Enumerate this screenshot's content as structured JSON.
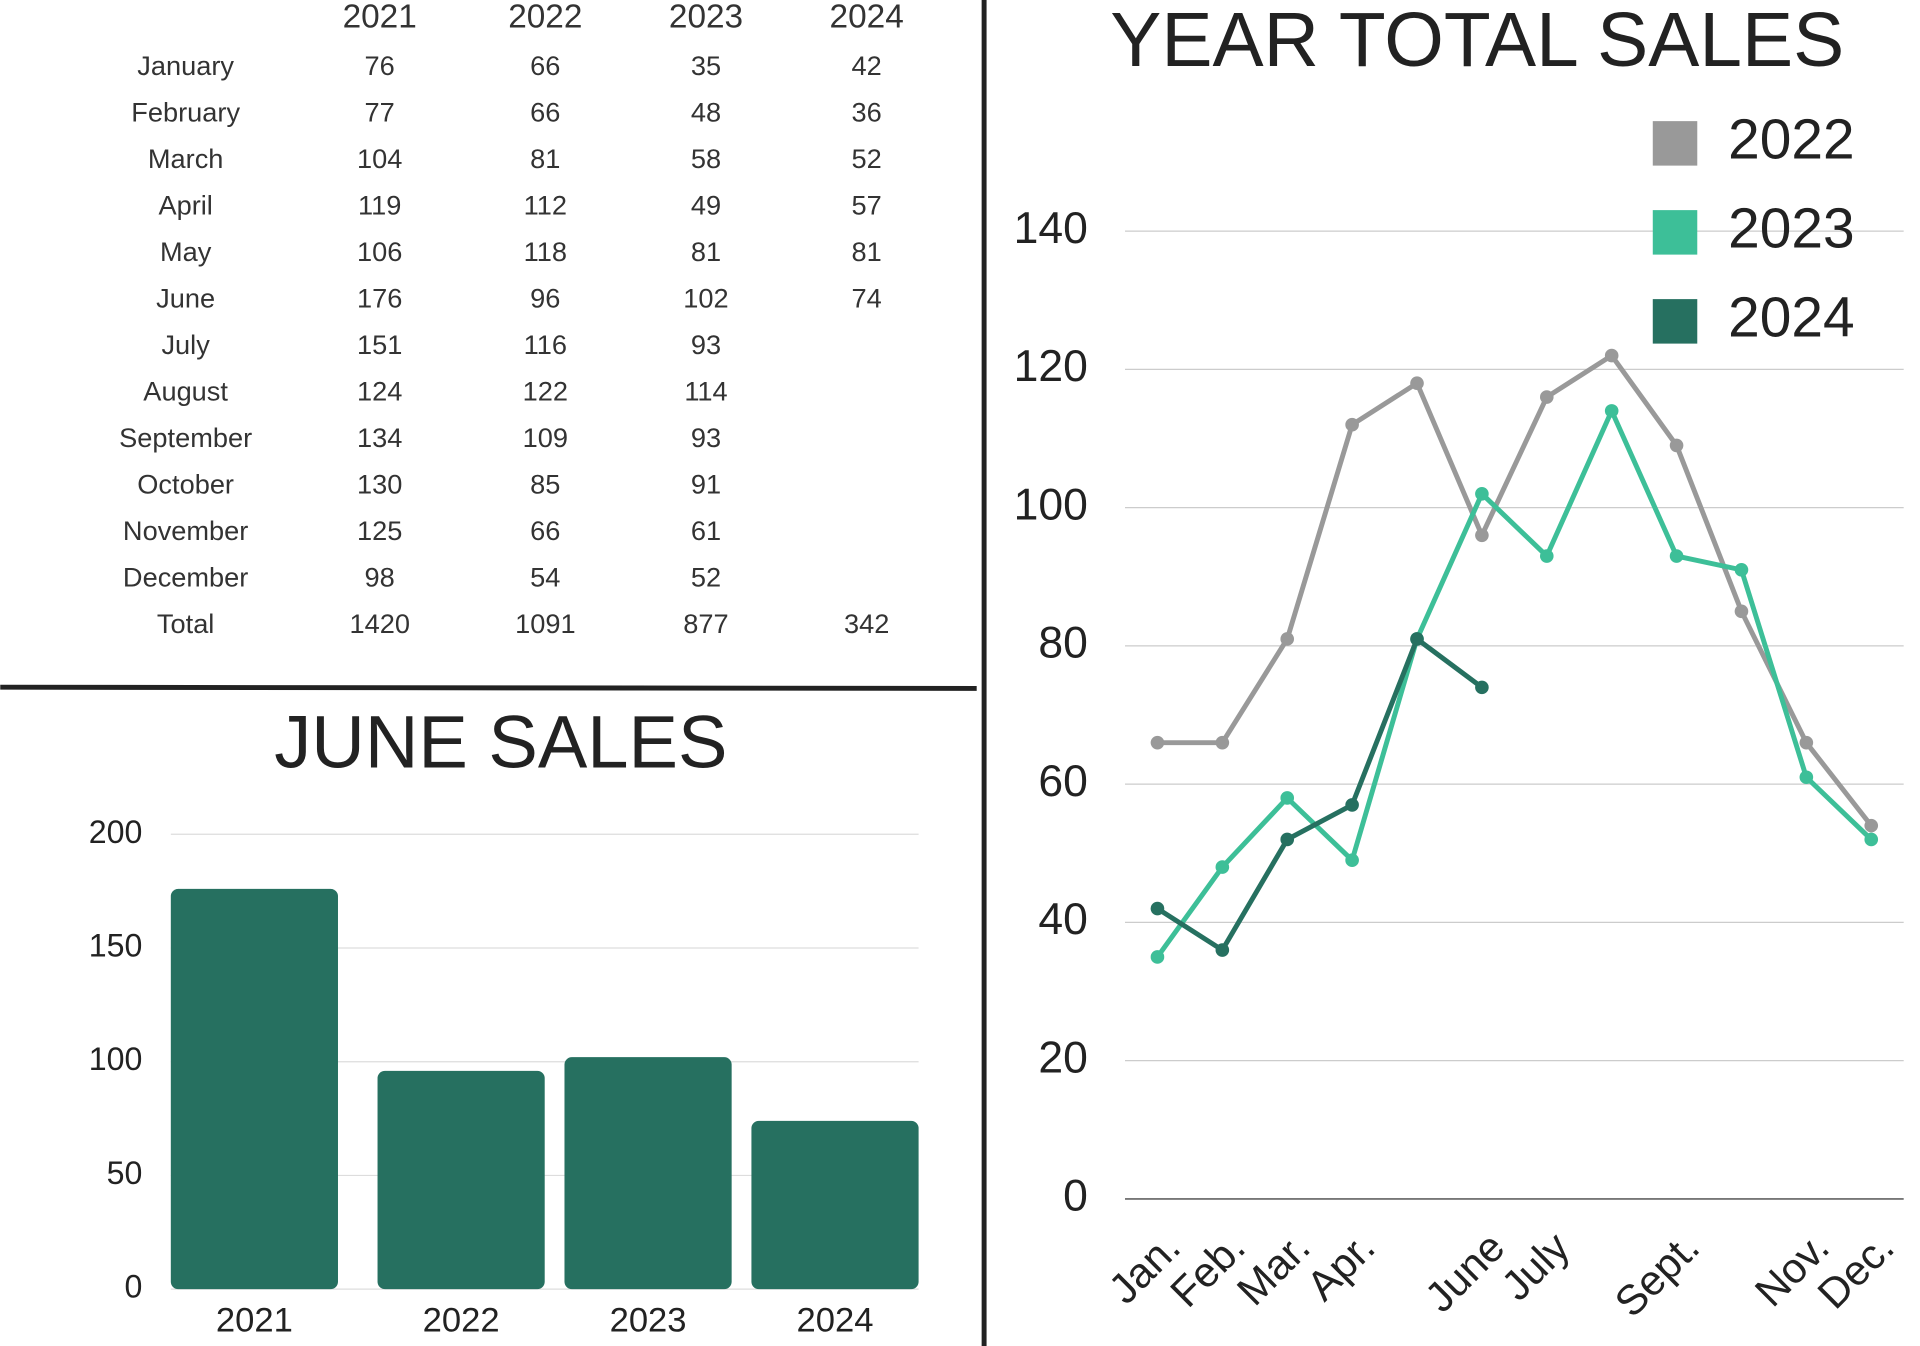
{
  "table": {
    "columns": [
      "2021",
      "2022",
      "2023",
      "2024"
    ],
    "rows": [
      [
        "January",
        76,
        66,
        35,
        42
      ],
      [
        "February",
        77,
        66,
        48,
        36
      ],
      [
        "March",
        104,
        81,
        58,
        52
      ],
      [
        "April",
        119,
        112,
        49,
        57
      ],
      [
        "May",
        106,
        118,
        81,
        81
      ],
      [
        "June",
        176,
        96,
        102,
        74
      ],
      [
        "July",
        151,
        116,
        93,
        null
      ],
      [
        "August",
        124,
        122,
        114,
        null
      ],
      [
        "September",
        134,
        109,
        93,
        null
      ],
      [
        "October",
        130,
        85,
        91,
        null
      ],
      [
        "November",
        125,
        66,
        61,
        null
      ],
      [
        "December",
        98,
        54,
        52,
        null
      ],
      [
        "Total",
        1420,
        1091,
        877,
        342
      ]
    ]
  },
  "chart_data": [
    {
      "type": "bar",
      "title": "JUNE SALES",
      "categories": [
        "2021",
        "2022",
        "2023",
        "2024"
      ],
      "values": [
        176,
        96,
        102,
        74
      ],
      "color": "#267060",
      "ylim": [
        0,
        200
      ],
      "yticks": [
        0,
        50,
        100,
        150,
        200
      ],
      "grid": true
    },
    {
      "type": "line",
      "title": "YEAR TOTAL SALES",
      "categories": [
        "Jan.",
        "Feb.",
        "Mar.",
        "Apr.",
        null,
        "June",
        "July",
        null,
        "Sept.",
        null,
        "Nov.",
        "Dec."
      ],
      "series": [
        {
          "name": "2022",
          "color": "#999999",
          "values": [
            66,
            66,
            81,
            112,
            118,
            96,
            116,
            122,
            109,
            85,
            66,
            54
          ]
        },
        {
          "name": "2023",
          "color": "#3dbf98",
          "values": [
            35,
            48,
            58,
            49,
            81,
            102,
            93,
            114,
            93,
            91,
            61,
            52
          ]
        },
        {
          "name": "2024",
          "color": "#267060",
          "values": [
            42,
            36,
            52,
            57,
            81,
            74,
            null,
            null,
            null,
            null,
            null,
            null
          ]
        }
      ],
      "ylim": [
        0,
        140
      ],
      "yticks": [
        0,
        20,
        40,
        60,
        80,
        100,
        120,
        140
      ],
      "grid": true,
      "legend": "upper right"
    }
  ]
}
